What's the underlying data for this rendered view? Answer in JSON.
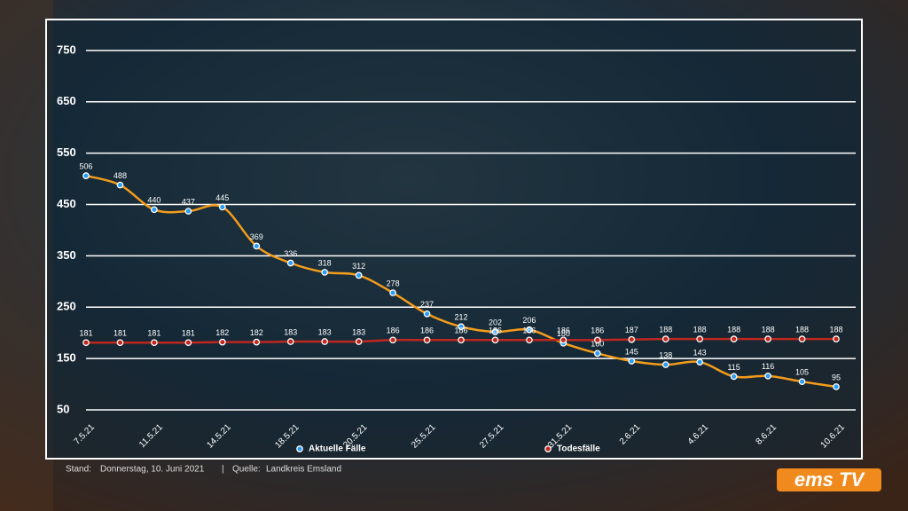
{
  "chart_data": {
    "type": "line",
    "categories": [
      "7.5.21",
      null,
      "11.5.21",
      null,
      "14.5.21",
      null,
      "18.5.21",
      null,
      "20.5.21",
      null,
      "25.5.21",
      null,
      "27.5.21",
      null,
      "31.5.21",
      null,
      "2.6.21",
      null,
      "4.6.21",
      null,
      "8.6.21",
      null,
      "10.6.21"
    ],
    "series": [
      {
        "name": "Aktuelle Fälle",
        "color": "#f39c1b",
        "marker_color": "#2a9df4",
        "values": [
          506,
          488,
          440,
          437,
          445,
          369,
          336,
          318,
          312,
          278,
          237,
          212,
          202,
          206,
          180,
          160,
          145,
          138,
          143,
          115,
          116,
          105,
          95
        ]
      },
      {
        "name": "Todesfälle",
        "color": "#c0271f",
        "marker_color": "#c0271f",
        "values": [
          181,
          181,
          181,
          181,
          182,
          182,
          183,
          183,
          183,
          186,
          186,
          186,
          186,
          186,
          186,
          186,
          187,
          188,
          188,
          188,
          188,
          188,
          188
        ]
      }
    ],
    "ylim": [
      50,
      800
    ],
    "yticks": [
      50,
      150,
      250,
      350,
      450,
      550,
      650,
      750
    ],
    "grid": true,
    "smooth": true
  },
  "footer": {
    "stand_label": "Stand:",
    "stand": "Donnerstag, 10. Juni 2021",
    "separator": "|",
    "source_label": "Quelle:",
    "source": "Landkreis Emsland"
  },
  "logo": "ems TV"
}
